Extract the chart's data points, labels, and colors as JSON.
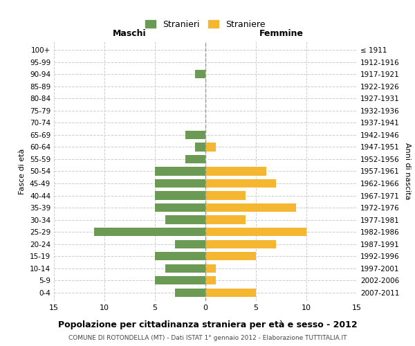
{
  "age_groups": [
    "100+",
    "95-99",
    "90-94",
    "85-89",
    "80-84",
    "75-79",
    "70-74",
    "65-69",
    "60-64",
    "55-59",
    "50-54",
    "45-49",
    "40-44",
    "35-39",
    "30-34",
    "25-29",
    "20-24",
    "15-19",
    "10-14",
    "5-9",
    "0-4"
  ],
  "birth_years": [
    "≤ 1911",
    "1912-1916",
    "1917-1921",
    "1922-1926",
    "1927-1931",
    "1932-1936",
    "1937-1941",
    "1942-1946",
    "1947-1951",
    "1952-1956",
    "1957-1961",
    "1962-1966",
    "1967-1971",
    "1972-1976",
    "1977-1981",
    "1982-1986",
    "1987-1991",
    "1992-1996",
    "1997-2001",
    "2002-2006",
    "2007-2011"
  ],
  "maschi": [
    0,
    0,
    1,
    0,
    0,
    0,
    0,
    2,
    1,
    2,
    5,
    5,
    5,
    5,
    4,
    11,
    3,
    5,
    4,
    5,
    3
  ],
  "femmine": [
    0,
    0,
    0,
    0,
    0,
    0,
    0,
    0,
    1,
    0,
    6,
    7,
    4,
    9,
    4,
    10,
    7,
    5,
    1,
    1,
    5
  ],
  "maschi_color": "#6a9a54",
  "femmine_color": "#f5b731",
  "background_color": "#ffffff",
  "grid_color": "#cccccc",
  "center_line_color": "#999999",
  "title": "Popolazione per cittadinanza straniera per età e sesso - 2012",
  "subtitle": "COMUNE DI ROTONDELLA (MT) - Dati ISTAT 1° gennaio 2012 - Elaborazione TUTTITALIA.IT",
  "xlabel_left": "Maschi",
  "xlabel_right": "Femmine",
  "ylabel_left": "Fasce di età",
  "ylabel_right": "Anni di nascita",
  "legend_stranieri": "Stranieri",
  "legend_straniere": "Straniere",
  "xlim": 15
}
